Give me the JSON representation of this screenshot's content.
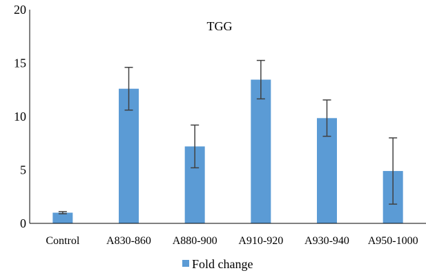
{
  "chart_data": {
    "type": "bar",
    "title": "TGG",
    "xlabel": "",
    "ylabel": "",
    "categories": [
      "Control",
      "A830-860",
      "A880-900",
      "A910-920",
      "A930-940",
      "A950-1000"
    ],
    "series": [
      {
        "name": "Fold change",
        "values": [
          1.0,
          12.6,
          7.2,
          13.45,
          9.85,
          4.9
        ],
        "error": [
          0.1,
          2.0,
          2.0,
          1.8,
          1.7,
          3.1
        ],
        "color": "#5B9BD5"
      }
    ],
    "ylim": [
      0,
      20
    ],
    "yticks": [
      "0",
      "5",
      "10",
      "15",
      "20"
    ],
    "grid": false,
    "legend_position": "bottom"
  }
}
